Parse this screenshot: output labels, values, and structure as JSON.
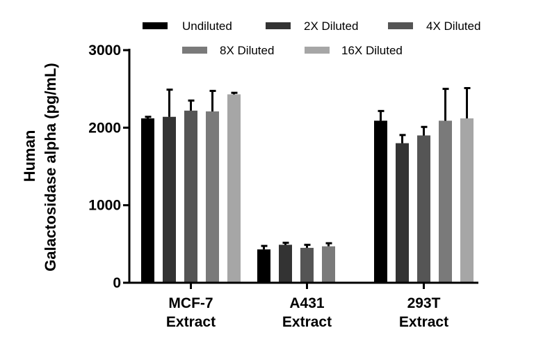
{
  "chart_data": {
    "type": "bar",
    "title": "",
    "xlabel": "",
    "ylabel_lines": [
      "Human",
      "Galactosidase alpha (pg/mL)"
    ],
    "ylim": [
      0,
      3000
    ],
    "yticks": [
      0,
      1000,
      2000,
      3000
    ],
    "categories": [
      [
        "MCF-7",
        "Extract"
      ],
      [
        "A431",
        "Extract"
      ],
      [
        "293T",
        "Extract"
      ]
    ],
    "legend_position": "top",
    "series": [
      {
        "name": "Undiluted",
        "color": "#000000",
        "values": [
          2120,
          430,
          2090
        ],
        "errors": [
          20,
          45,
          125
        ]
      },
      {
        "name": "2X Diluted",
        "color": "#333333",
        "values": [
          2140,
          490,
          1800
        ],
        "errors": [
          350,
          25,
          105
        ]
      },
      {
        "name": "4X Diluted",
        "color": "#555555",
        "values": [
          2220,
          450,
          1900
        ],
        "errors": [
          130,
          40,
          110
        ]
      },
      {
        "name": "8X Diluted",
        "color": "#7a7a7a",
        "values": [
          2210,
          470,
          2090
        ],
        "errors": [
          265,
          40,
          410
        ]
      },
      {
        "name": "16X Diluted",
        "color": "#a6a6a6",
        "values": [
          2430,
          null,
          2120
        ],
        "errors": [
          20,
          null,
          390
        ]
      }
    ]
  }
}
